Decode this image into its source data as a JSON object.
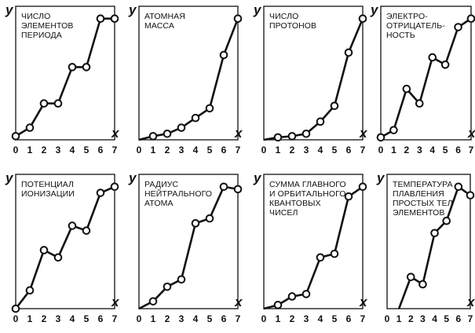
{
  "chart_data": [
    {
      "type": "line",
      "title": [
        "ЧИСЛО",
        "ЭЛЕМЕНТОВ",
        "ПЕРИОДА"
      ],
      "xlabel": "x",
      "ylabel": "y",
      "categories": [
        "0",
        "1",
        "2",
        "3",
        "4",
        "5",
        "6",
        "7"
      ],
      "x": [
        0,
        1,
        2,
        3,
        4,
        5,
        6,
        7
      ],
      "values": [
        0.03,
        0.1,
        0.3,
        0.3,
        0.6,
        0.6,
        1.0,
        1.0
      ],
      "xlim": [
        0,
        7
      ],
      "ylim": [
        0,
        1.05
      ],
      "grid": false,
      "legend": "none"
    },
    {
      "type": "line",
      "title": [
        "АТОМНАЯ",
        "МАССА"
      ],
      "xlabel": "x",
      "ylabel": "y",
      "categories": [
        "0",
        "1",
        "2",
        "3",
        "4",
        "5",
        "6",
        "7"
      ],
      "x": [
        1,
        2,
        3,
        4,
        5,
        6,
        7
      ],
      "values": [
        0.03,
        0.05,
        0.1,
        0.18,
        0.26,
        0.7,
        1.0
      ],
      "xlim": [
        0,
        7
      ],
      "ylim": [
        0,
        1.05
      ],
      "grid": false,
      "legend": "none"
    },
    {
      "type": "line",
      "title": [
        "ЧИСЛО",
        "ПРОТОНОВ"
      ],
      "xlabel": "x",
      "ylabel": "y",
      "categories": [
        "0",
        "1",
        "2",
        "3",
        "4",
        "5",
        "6",
        "7"
      ],
      "x": [
        1,
        2,
        3,
        4,
        5,
        6,
        7
      ],
      "values": [
        0.02,
        0.03,
        0.05,
        0.15,
        0.28,
        0.72,
        1.0
      ],
      "xlim": [
        0,
        7
      ],
      "ylim": [
        0,
        1.05
      ],
      "grid": false,
      "legend": "none"
    },
    {
      "type": "line",
      "title": [
        "ЭЛЕКТРО-",
        "ОТРИЦАТЕЛЬ-",
        "НОСТЬ"
      ],
      "xlabel": "x",
      "ylabel": "y",
      "categories": [
        "0",
        "1",
        "2",
        "3",
        "4",
        "5",
        "6",
        "7"
      ],
      "x": [
        0,
        1,
        2,
        3,
        4,
        5,
        6,
        7
      ],
      "values": [
        0.02,
        0.08,
        0.42,
        0.3,
        0.68,
        0.62,
        0.93,
        1.0
      ],
      "xlim": [
        0,
        7
      ],
      "ylim": [
        0,
        1.05
      ],
      "grid": false,
      "legend": "none"
    },
    {
      "type": "line",
      "title": [
        "ПОТЕНЦИАЛ",
        "ИОНИЗАЦИИ"
      ],
      "xlabel": "x",
      "ylabel": "y",
      "categories": [
        "0",
        "1",
        "2",
        "3",
        "4",
        "5",
        "6",
        "7"
      ],
      "x": [
        0,
        1,
        2,
        3,
        4,
        5,
        6,
        7
      ],
      "values": [
        0.0,
        0.15,
        0.48,
        0.42,
        0.68,
        0.64,
        0.95,
        1.0
      ],
      "xlim": [
        0,
        7
      ],
      "ylim": [
        0,
        1.05
      ],
      "grid": false,
      "legend": "none"
    },
    {
      "type": "line",
      "title": [
        "РАДИУС",
        "НЕЙТРАЛЬНОГО",
        "АТОМА"
      ],
      "xlabel": "x",
      "ylabel": "y",
      "categories": [
        "0",
        "1",
        "2",
        "3",
        "4",
        "5",
        "6",
        "7"
      ],
      "x": [
        1,
        2,
        3,
        4,
        5,
        6,
        7
      ],
      "values": [
        0.06,
        0.18,
        0.24,
        0.7,
        0.74,
        1.0,
        0.98
      ],
      "xlim": [
        0,
        7
      ],
      "ylim": [
        0,
        1.05
      ],
      "grid": false,
      "legend": "none"
    },
    {
      "type": "line",
      "title": [
        "СУММА ГЛАВНОГО",
        "И ОРБИТАЛЬНОГО",
        "КВАНТОВЫХ",
        "ЧИСЕЛ"
      ],
      "xlabel": "x",
      "ylabel": "y",
      "categories": [
        "0",
        "1",
        "2",
        "3",
        "4",
        "5",
        "6",
        "7"
      ],
      "x": [
        1,
        2,
        3,
        4,
        5,
        6,
        7
      ],
      "values": [
        0.03,
        0.1,
        0.12,
        0.42,
        0.45,
        0.92,
        1.0
      ],
      "xlim": [
        0,
        7
      ],
      "ylim": [
        0,
        1.05
      ],
      "grid": false,
      "legend": "none"
    },
    {
      "type": "line",
      "title": [
        "ТЕМПЕРАТУРА",
        "ПЛАВЛЕНИЯ",
        "ПРОСТЫХ ТЕЛ",
        "ЭЛЕМЕНТОВ"
      ],
      "xlabel": "x",
      "ylabel": "y",
      "categories": [
        "0",
        "1",
        "2",
        "3",
        "4",
        "5",
        "6",
        "7"
      ],
      "x": [
        2,
        3,
        4,
        5,
        6,
        7
      ],
      "values": [
        0.26,
        0.2,
        0.62,
        0.72,
        1.0,
        0.93
      ],
      "xlim": [
        0,
        7
      ],
      "ylim": [
        0,
        1.05
      ],
      "grid": false,
      "legend": "none"
    }
  ]
}
